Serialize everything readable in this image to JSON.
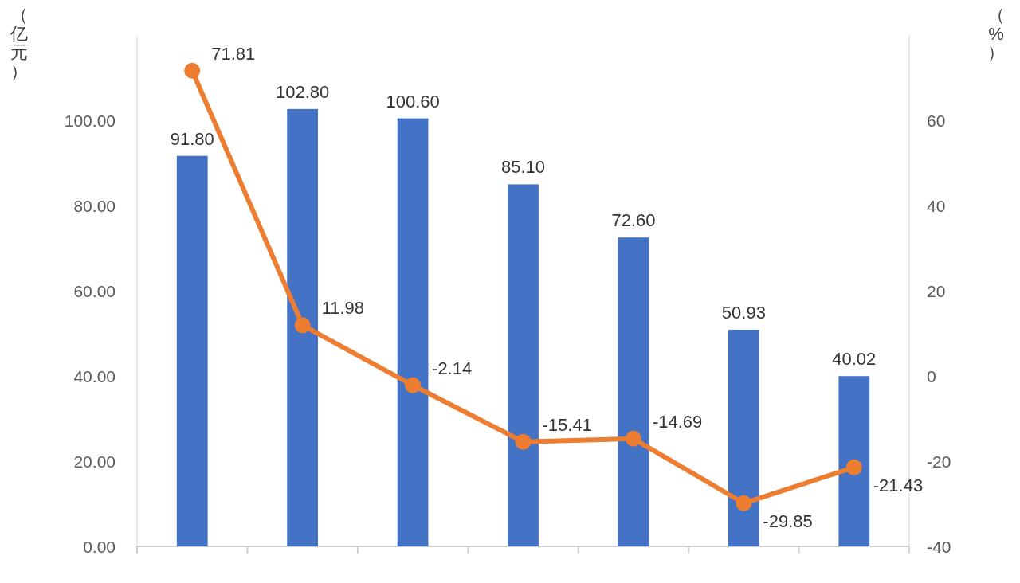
{
  "chart_data": {
    "type": "bar",
    "ylabel": "（亿元）",
    "y2label": "（%）",
    "categories": [
      null,
      null,
      null,
      null,
      null,
      null,
      null
    ],
    "series": [
      {
        "color": "#4472c4",
        "values": [
          91.8,
          102.8,
          100.6,
          85.1,
          72.6,
          50.93,
          40.02
        ],
        "value_labels": [
          "91.80",
          "102.80",
          "100.60",
          "85.10",
          "72.60",
          "50.93",
          "40.02"
        ]
      },
      {
        "type": "line",
        "axis": "y2",
        "color": "#ed7d31",
        "values": [
          71.81,
          11.98,
          -2.14,
          -15.41,
          -14.69,
          -29.85,
          -21.43
        ],
        "value_labels": [
          "71.81",
          "11.98",
          "-2.14",
          "-15.41",
          "-14.69",
          "-29.85",
          "-21.43"
        ]
      }
    ],
    "ylim": [
      0,
      120
    ],
    "yticks": [
      {
        "value": 0,
        "label": "0.00"
      },
      {
        "value": 20,
        "label": "20.00"
      },
      {
        "value": 40,
        "label": "40.00"
      },
      {
        "value": 60,
        "label": "60.00"
      },
      {
        "value": 80,
        "label": "80.00"
      },
      {
        "value": 100,
        "label": "100.00"
      }
    ],
    "y2lim": [
      -40,
      80
    ],
    "y2ticks": [
      -40,
      -20,
      0,
      20,
      40,
      60
    ],
    "marker": "circle"
  }
}
